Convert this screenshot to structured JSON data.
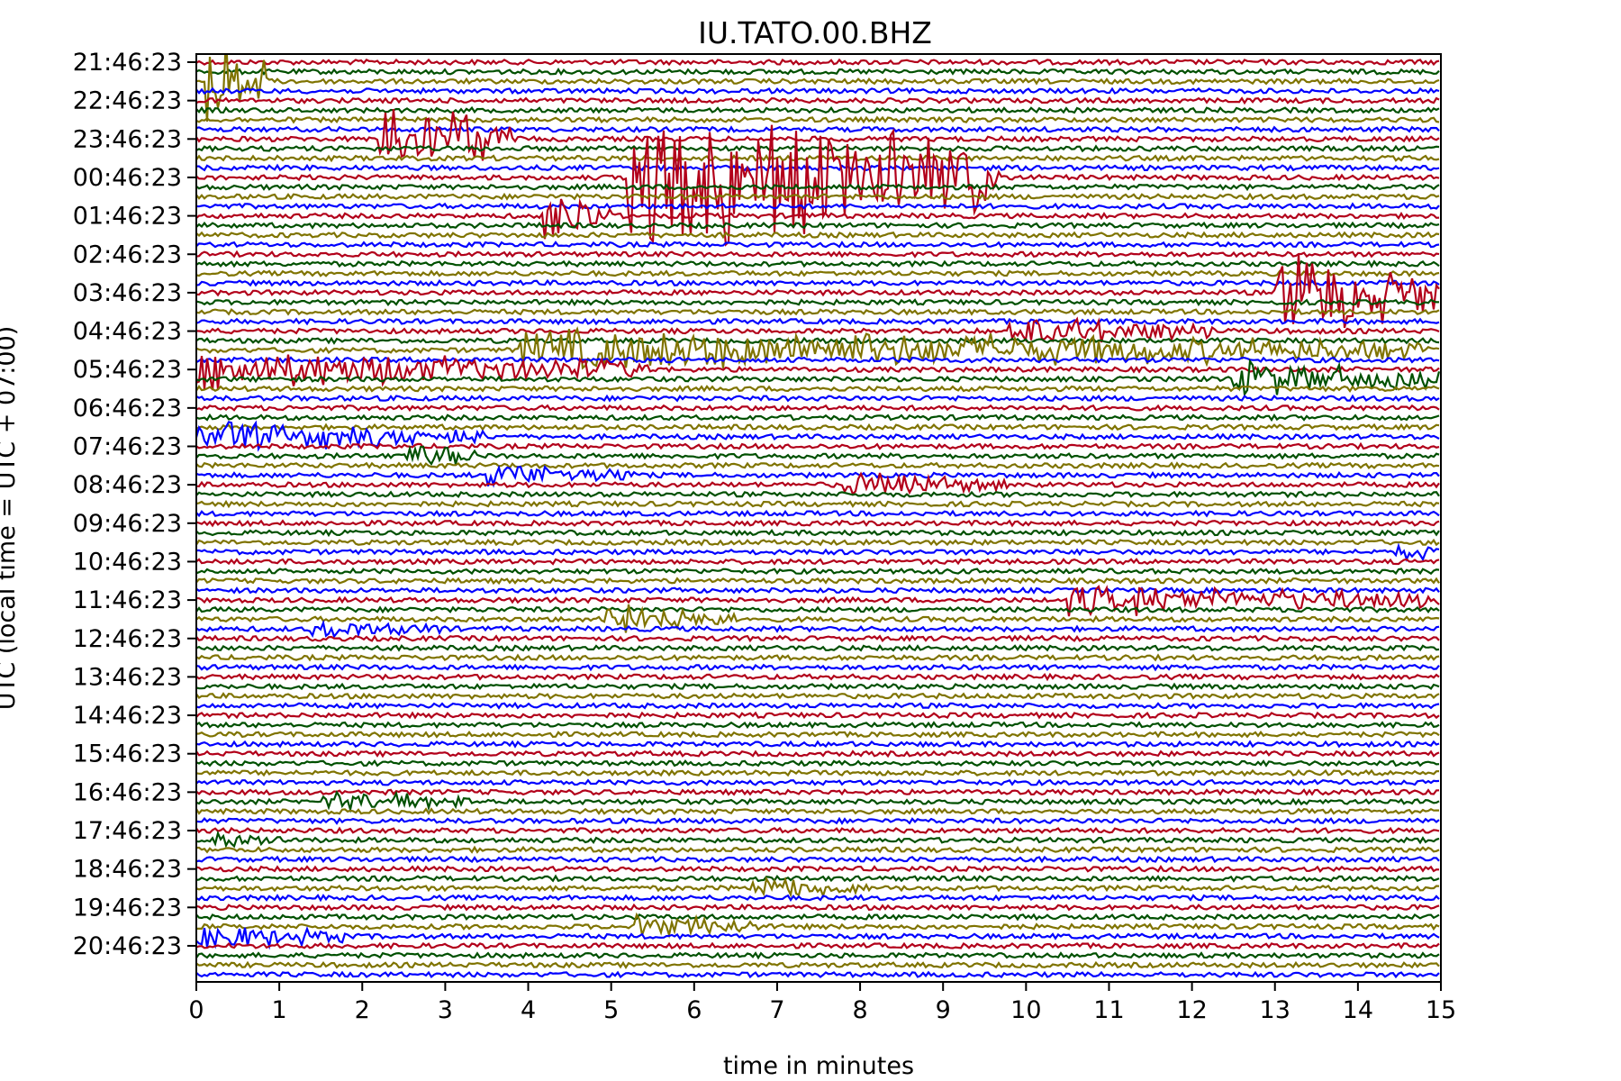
{
  "chart_data": {
    "type": "line",
    "title": "IU.TATO.00.BHZ",
    "xlabel": "time in minutes",
    "ylabel": "UTC (local time = UTC + 07:00)",
    "xlim": [
      0,
      15
    ],
    "x_ticks": [
      "0",
      "1",
      "2",
      "3",
      "4",
      "5",
      "6",
      "7",
      "8",
      "9",
      "10",
      "11",
      "12",
      "13",
      "14",
      "15"
    ],
    "y_ticks": [
      "21:46:23",
      "22:46:23",
      "23:46:23",
      "00:46:23",
      "01:46:23",
      "02:46:23",
      "03:46:23",
      "04:46:23",
      "05:46:23",
      "06:46:23",
      "07:46:23",
      "08:46:23",
      "09:46:23",
      "10:46:23",
      "11:46:23",
      "12:46:23",
      "13:46:23",
      "14:46:23",
      "15:46:23",
      "16:46:23",
      "17:46:23",
      "18:46:23",
      "19:46:23",
      "20:46:23"
    ],
    "traces_per_hour": 4,
    "trace_colors": [
      "#b2001a",
      "#005000",
      "#7f7300",
      "#0000ff"
    ],
    "grid": false,
    "events": [
      {
        "color_index": 3,
        "hour": 8.0,
        "start_min": 0.0,
        "duration_min": 5.5,
        "amplitude": 1.6
      },
      {
        "color_index": 1,
        "hour": 2.0,
        "start_min": 2.2,
        "duration_min": 1.6,
        "amplitude": 4.0
      },
      {
        "color_index": 1,
        "hour": 0.5,
        "start_min": 0.1,
        "duration_min": 0.8,
        "amplitude": 5.0
      },
      {
        "color_index": 2,
        "hour": 7.5,
        "start_min": 3.9,
        "duration_min": 11.0,
        "amplitude": 1.8
      },
      {
        "color_index": 0,
        "hour": 3.0,
        "start_min": 5.2,
        "duration_min": 4.5,
        "amplitude": 7.0
      },
      {
        "color_index": 1,
        "hour": 4.0,
        "start_min": 4.2,
        "duration_min": 0.8,
        "amplitude": 2.5
      },
      {
        "color_index": 0,
        "hour": 7.0,
        "start_min": 9.8,
        "duration_min": 2.5,
        "amplitude": 1.2
      },
      {
        "color_index": 1,
        "hour": 8.25,
        "start_min": 12.5,
        "duration_min": 2.5,
        "amplitude": 1.4
      },
      {
        "color_index": 0,
        "hour": 6.0,
        "start_min": 13.0,
        "duration_min": 2.0,
        "amplitude": 4.0
      },
      {
        "color_index": 3,
        "hour": 9.75,
        "start_min": 0.0,
        "duration_min": 3.5,
        "amplitude": 1.2
      },
      {
        "color_index": 3,
        "hour": 10.75,
        "start_min": 3.5,
        "duration_min": 1.8,
        "amplitude": 0.9
      },
      {
        "color_index": 3,
        "hour": 14.0,
        "start_min": 10.5,
        "duration_min": 4.5,
        "amplitude": 1.2
      },
      {
        "color_index": 1,
        "hour": 14.5,
        "start_min": 4.9,
        "duration_min": 1.6,
        "amplitude": 1.4
      },
      {
        "color_index": 2,
        "hour": 14.75,
        "start_min": 1.4,
        "duration_min": 1.6,
        "amplitude": 0.6
      },
      {
        "color_index": 2,
        "hour": 19.25,
        "start_min": 1.5,
        "duration_min": 1.8,
        "amplitude": 0.8
      },
      {
        "color_index": 2,
        "hour": 20.25,
        "start_min": 0.15,
        "duration_min": 1.0,
        "amplitude": 0.6
      },
      {
        "color_index": 1,
        "hour": 21.5,
        "start_min": 6.7,
        "duration_min": 1.5,
        "amplitude": 0.9
      },
      {
        "color_index": 0,
        "hour": 22.5,
        "start_min": 5.3,
        "duration_min": 1.5,
        "amplitude": 0.9
      },
      {
        "color_index": 2,
        "hour": 22.75,
        "start_min": 0.0,
        "duration_min": 1.8,
        "amplitude": 1.0
      },
      {
        "color_index": 3,
        "hour": 10.25,
        "start_min": 2.5,
        "duration_min": 0.9,
        "amplitude": 1.2
      },
      {
        "color_index": 1,
        "hour": 12.75,
        "start_min": 14.4,
        "duration_min": 0.6,
        "amplitude": 0.8
      },
      {
        "color_index": 2,
        "hour": 11.0,
        "start_min": 7.8,
        "duration_min": 2.0,
        "amplitude": 0.9
      }
    ]
  }
}
